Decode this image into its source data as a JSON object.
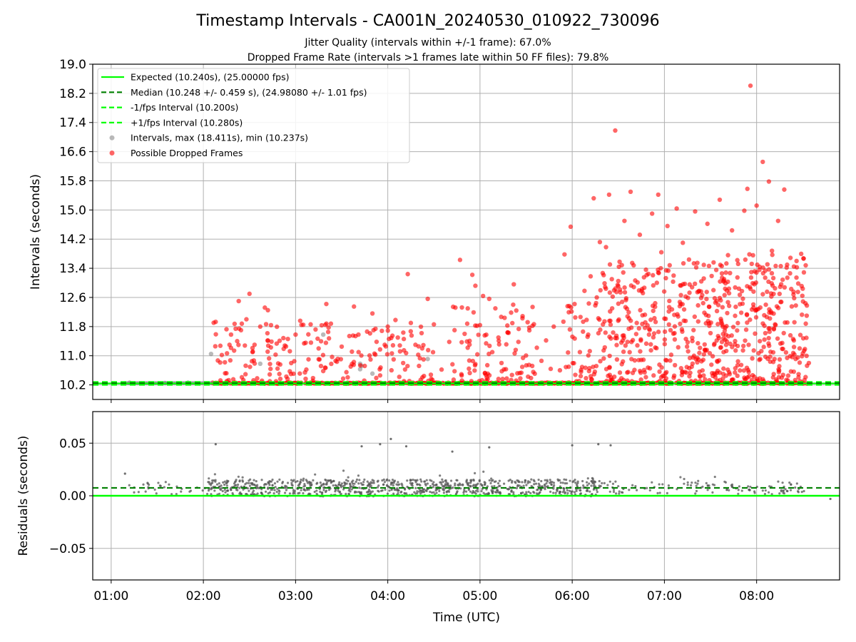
{
  "title": "Timestamp Intervals - CA001N_20240530_010922_730096",
  "subtitle_1": "Jitter Quality (intervals within +/-1 frame): 67.0%",
  "subtitle_2": "Dropped Frame Rate (intervals >1 frames late within 50 FF files): 79.8%",
  "colors": {
    "expected": "#00ff00",
    "median": "#008000",
    "fps_bounds": "#00ff00",
    "intervals": "#808080",
    "dropped": "#ff0000",
    "grid": "#b0b0b0"
  },
  "chart_data": [
    {
      "type": "scatter",
      "panel": "top",
      "ylabel": "Intervals (seconds)",
      "xlabel": "",
      "ylim": [
        9.8,
        19.0
      ],
      "xlim_hours": [
        0.8,
        8.9
      ],
      "y_ticks": [
        "10.2",
        "11.0",
        "11.8",
        "12.6",
        "13.4",
        "14.2",
        "15.0",
        "15.8",
        "16.6",
        "17.4",
        "18.2",
        "19.0"
      ],
      "x_ticks": [
        "01:00",
        "02:00",
        "03:00",
        "04:00",
        "05:00",
        "06:00",
        "07:00",
        "08:00"
      ],
      "grid": true,
      "legend_position": "top-left",
      "lines": {
        "expected": 10.24,
        "median": 10.248,
        "minus_fps": 10.2,
        "plus_fps": 10.28
      },
      "legend": [
        {
          "label": "Expected (10.240s), (25.00000 fps)",
          "kind": "solid",
          "color": "#00ff00"
        },
        {
          "label": "Median (10.248 +/- 0.459 s), (24.98080 +/- 1.01 fps)",
          "kind": "dashed",
          "color": "#008000"
        },
        {
          "label": "-1/fps Interval (10.200s)",
          "kind": "dashed",
          "color": "#00ff00"
        },
        {
          "label": "+1/fps Interval (10.280s)",
          "kind": "dashed",
          "color": "#00ff00"
        },
        {
          "label": "Intervals, max (18.411s), min (10.237s)",
          "kind": "marker",
          "color": "#808080"
        },
        {
          "label": "Possible Dropped Frames",
          "kind": "marker",
          "color": "#ff0000"
        }
      ],
      "series": [
        {
          "name": "Intervals, max (18.411s), min (10.237s)",
          "points": [
            [
              "02:05",
              11.05
            ],
            [
              "02:37",
              10.78
            ],
            [
              "03:18",
              11.58
            ],
            [
              "03:43",
              10.72
            ],
            [
              "03:42",
              10.63
            ],
            [
              "03:50",
              10.51
            ],
            [
              "04:26",
              10.91
            ],
            [
              "03:42",
              10.78
            ],
            [
              "01:12",
              10.26
            ],
            [
              "01:35",
              10.25
            ],
            [
              "01:50",
              10.26
            ]
          ]
        },
        {
          "name": "Possible Dropped Frames",
          "points": [
            [
              "02:08",
              11.93
            ],
            [
              "02:12",
              11.02
            ],
            [
              "02:14",
              10.82
            ],
            [
              "02:15",
              10.52
            ],
            [
              "02:17",
              11.3
            ],
            [
              "02:18",
              11.58
            ],
            [
              "02:20",
              11.14
            ],
            [
              "02:21",
              11.74
            ],
            [
              "02:22",
              11.4
            ],
            [
              "02:23",
              12.5
            ],
            [
              "02:25",
              11.88
            ],
            [
              "02:27",
              11.28
            ],
            [
              "02:28",
              12.0
            ],
            [
              "02:30",
              12.7
            ],
            [
              "02:32",
              11.1
            ],
            [
              "02:35",
              10.38
            ],
            [
              "02:37",
              11.8
            ],
            [
              "02:40",
              12.32
            ],
            [
              "02:42",
              12.25
            ],
            [
              "02:44",
              11.84
            ],
            [
              "02:47",
              11.03
            ],
            [
              "02:50",
              10.76
            ],
            [
              "02:53",
              11.28
            ],
            [
              "02:55",
              11.46
            ],
            [
              "02:57",
              10.5
            ],
            [
              "03:00",
              11.58
            ],
            [
              "03:03",
              11.96
            ],
            [
              "03:05",
              11.85
            ],
            [
              "03:07",
              10.62
            ],
            [
              "03:10",
              11.36
            ],
            [
              "03:13",
              11.72
            ],
            [
              "03:15",
              11.2
            ],
            [
              "03:18",
              10.58
            ],
            [
              "03:20",
              12.42
            ],
            [
              "03:23",
              11.88
            ],
            [
              "03:26",
              10.86
            ],
            [
              "03:30",
              11.25
            ],
            [
              "03:35",
              11.54
            ],
            [
              "03:38",
              12.35
            ],
            [
              "03:41",
              11.1
            ],
            [
              "03:45",
              10.72
            ],
            [
              "03:50",
              12.16
            ],
            [
              "03:52",
              11.74
            ],
            [
              "03:55",
              10.46
            ],
            [
              "03:58",
              11.3
            ],
            [
              "04:00",
              11.8
            ],
            [
              "04:03",
              11.55
            ],
            [
              "04:05",
              11.98
            ],
            [
              "04:08",
              11.12
            ],
            [
              "04:10",
              10.8
            ],
            [
              "04:13",
              13.24
            ],
            [
              "04:15",
              11.9
            ],
            [
              "04:18",
              11.3
            ],
            [
              "04:22",
              11.62
            ],
            [
              "04:26",
              12.56
            ],
            [
              "04:30",
              11.86
            ],
            [
              "04:35",
              10.62
            ],
            [
              "04:40",
              11.38
            ],
            [
              "04:44",
              12.32
            ],
            [
              "04:47",
              13.63
            ],
            [
              "04:50",
              11.6
            ],
            [
              "04:52",
              11.22
            ],
            [
              "04:55",
              13.22
            ],
            [
              "04:57",
              12.92
            ],
            [
              "05:00",
              11.84
            ],
            [
              "05:02",
              12.64
            ],
            [
              "05:04",
              11.34
            ],
            [
              "05:06",
              12.56
            ],
            [
              "05:08",
              11.1
            ],
            [
              "05:10",
              12.3
            ],
            [
              "05:12",
              11.5
            ],
            [
              "05:14",
              10.8
            ],
            [
              "05:16",
              12.04
            ],
            [
              "05:18",
              11.64
            ],
            [
              "05:22",
              12.96
            ],
            [
              "05:25",
              11.38
            ],
            [
              "05:28",
              10.94
            ],
            [
              "05:31",
              11.92
            ],
            [
              "05:34",
              10.72
            ],
            [
              "05:37",
              11.22
            ],
            [
              "05:40",
              10.86
            ],
            [
              "05:43",
              11.42
            ],
            [
              "05:46",
              10.64
            ],
            [
              "05:48",
              11.8
            ],
            [
              "05:52",
              10.6
            ],
            [
              "05:55",
              13.78
            ],
            [
              "05:57",
              12.36
            ],
            [
              "05:59",
              14.54
            ],
            [
              "06:02",
              12.05
            ],
            [
              "06:05",
              11.1
            ],
            [
              "06:08",
              12.78
            ],
            [
              "06:10",
              11.52
            ],
            [
              "06:12",
              13.18
            ],
            [
              "06:14",
              15.32
            ],
            [
              "06:16",
              12.6
            ],
            [
              "06:18",
              14.12
            ],
            [
              "06:20",
              11.86
            ],
            [
              "06:22",
              13.98
            ],
            [
              "06:24",
              15.42
            ],
            [
              "06:26",
              12.3
            ],
            [
              "06:28",
              17.18
            ],
            [
              "06:30",
              13.05
            ],
            [
              "06:32",
              11.36
            ],
            [
              "06:34",
              14.7
            ],
            [
              "06:36",
              12.08
            ],
            [
              "06:38",
              15.5
            ],
            [
              "06:40",
              13.48
            ],
            [
              "06:42",
              11.9
            ],
            [
              "06:44",
              14.32
            ],
            [
              "06:46",
              12.72
            ],
            [
              "06:48",
              13.36
            ],
            [
              "06:50",
              11.58
            ],
            [
              "06:52",
              14.9
            ],
            [
              "06:54",
              12.44
            ],
            [
              "06:56",
              15.42
            ],
            [
              "06:58",
              13.84
            ],
            [
              "07:00",
              12.02
            ],
            [
              "07:02",
              14.56
            ],
            [
              "07:04",
              11.7
            ],
            [
              "07:06",
              13.2
            ],
            [
              "07:08",
              15.04
            ],
            [
              "07:10",
              12.36
            ],
            [
              "07:12",
              14.1
            ],
            [
              "07:14",
              11.46
            ],
            [
              "07:16",
              13.64
            ],
            [
              "07:18",
              12.88
            ],
            [
              "07:20",
              14.96
            ],
            [
              "07:22",
              11.94
            ],
            [
              "07:24",
              13.04
            ],
            [
              "07:26",
              12.18
            ],
            [
              "07:28",
              14.62
            ],
            [
              "07:30",
              11.62
            ],
            [
              "07:32",
              13.56
            ],
            [
              "07:34",
              12.5
            ],
            [
              "07:36",
              15.28
            ],
            [
              "07:38",
              11.8
            ],
            [
              "07:40",
              13.28
            ],
            [
              "07:42",
              12.84
            ],
            [
              "07:44",
              14.44
            ],
            [
              "07:46",
              11.4
            ],
            [
              "07:48",
              13.52
            ],
            [
              "07:50",
              12.18
            ],
            [
              "07:52",
              14.98
            ],
            [
              "07:54",
              15.58
            ],
            [
              "07:56",
              18.41
            ],
            [
              "07:58",
              12.76
            ],
            [
              "08:00",
              15.12
            ],
            [
              "08:02",
              13.44
            ],
            [
              "08:04",
              16.32
            ],
            [
              "08:06",
              12.4
            ],
            [
              "08:08",
              15.78
            ],
            [
              "08:10",
              13.88
            ],
            [
              "08:12",
              11.86
            ],
            [
              "08:14",
              14.7
            ],
            [
              "08:16",
              12.96
            ],
            [
              "08:18",
              15.56
            ],
            [
              "08:20",
              13.14
            ],
            [
              "08:22",
              11.56
            ],
            [
              "08:24",
              12.68
            ],
            [
              "08:26",
              13.6
            ],
            [
              "08:28",
              11.2
            ],
            [
              "08:30",
              12.84
            ],
            [
              "08:32",
              11.88
            ],
            [
              "08:34",
              10.8
            ]
          ]
        }
      ]
    },
    {
      "type": "scatter",
      "panel": "bottom",
      "xlabel": "Time (UTC)",
      "ylabel": "Residuals (seconds)",
      "ylim": [
        -0.08,
        0.08
      ],
      "y_ticks": [
        "0.05",
        "0.00",
        "−0.05"
      ],
      "x_ticks": [
        "01:00",
        "02:00",
        "03:00",
        "04:00",
        "05:00",
        "06:00",
        "07:00",
        "08:00"
      ],
      "grid": true,
      "lines": {
        "zero": 0.0,
        "median_offset": 0.0075
      },
      "series": [
        {
          "name": "Residuals",
          "outliers": [
            [
              "01:09",
              0.021
            ],
            [
              "02:08",
              0.049
            ],
            [
              "03:43",
              0.047
            ],
            [
              "03:55",
              0.049
            ],
            [
              "04:02",
              0.054
            ],
            [
              "04:12",
              0.047
            ],
            [
              "04:42",
              0.042
            ],
            [
              "05:06",
              0.046
            ],
            [
              "06:00",
              0.048
            ],
            [
              "06:17",
              0.049
            ],
            [
              "06:25",
              0.048
            ],
            [
              "08:48",
              -0.003
            ]
          ]
        }
      ]
    }
  ]
}
